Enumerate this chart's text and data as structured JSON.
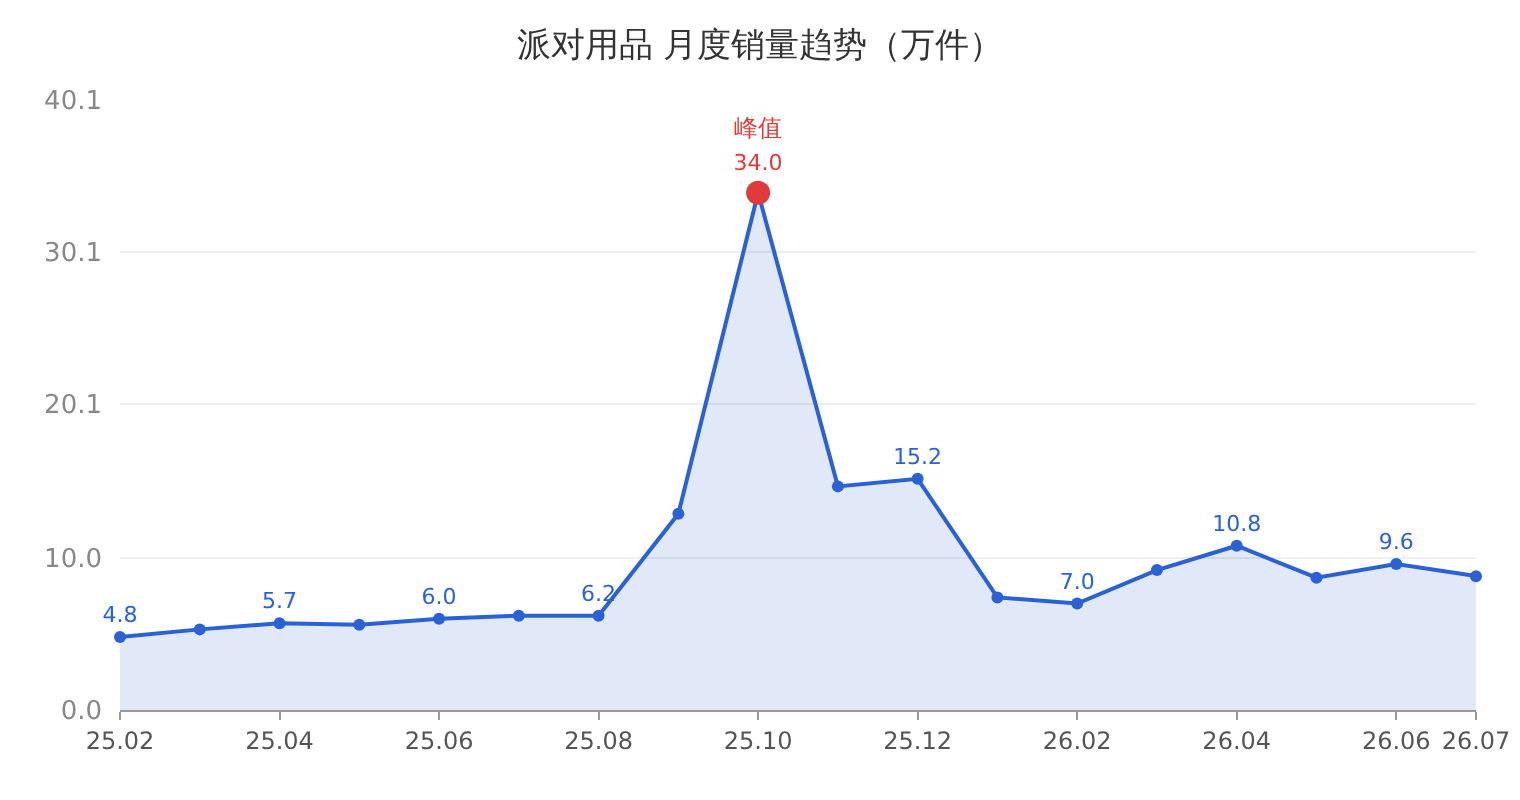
{
  "chart_data": {
    "type": "area",
    "title": "派对用品 月度销量趋势（万件）",
    "categories": [
      "25.02",
      null,
      "25.04",
      null,
      "25.06",
      null,
      "25.08",
      null,
      "25.10",
      null,
      "25.12",
      null,
      "26.02",
      null,
      "26.04",
      null,
      "26.06",
      "26.07"
    ],
    "series": [
      {
        "color": "#2a62d6",
        "values": [
          4.8,
          5.3,
          5.7,
          5.6,
          6.0,
          6.2,
          6.2,
          12.9,
          34.0,
          14.7,
          15.2,
          7.4,
          7.0,
          9.2,
          10.8,
          8.7,
          9.6,
          8.8
        ],
        "value_labels": [
          "4.8",
          null,
          "5.7",
          null,
          "6.0",
          null,
          "6.2",
          null,
          "34.0",
          null,
          "15.2",
          null,
          "7.0",
          null,
          "10.8",
          null,
          "9.6",
          null
        ],
        "colors": [
          "#2a62d6",
          "#2a62d6",
          "#2a62d6",
          "#2a62d6",
          "#2a62d6",
          "#2a62d6",
          "#2a62d6",
          "#2a62d6",
          "#e03a3a",
          "#2a62d6",
          "#2a62d6",
          "#2a62d6",
          "#2a62d6",
          "#2a62d6",
          "#2a62d6",
          "#2a62d6",
          "#2a62d6",
          "#2a62d6"
        ]
      }
    ],
    "annotations": [
      {
        "text": "峰值",
        "x": "25.10",
        "y": 34.0
      }
    ],
    "ylim": [
      0,
      40.1
    ],
    "yticks": [
      {
        "value": 0,
        "label": "0.0"
      },
      {
        "value": 10.0,
        "label": "10.0"
      },
      {
        "value": 20.1,
        "label": "20.1"
      },
      {
        "value": 30.1,
        "label": "30.1"
      },
      {
        "value": 40.1,
        "label": "40.1"
      }
    ],
    "grid": "y",
    "marker": "circle",
    "line_style": "solid"
  }
}
